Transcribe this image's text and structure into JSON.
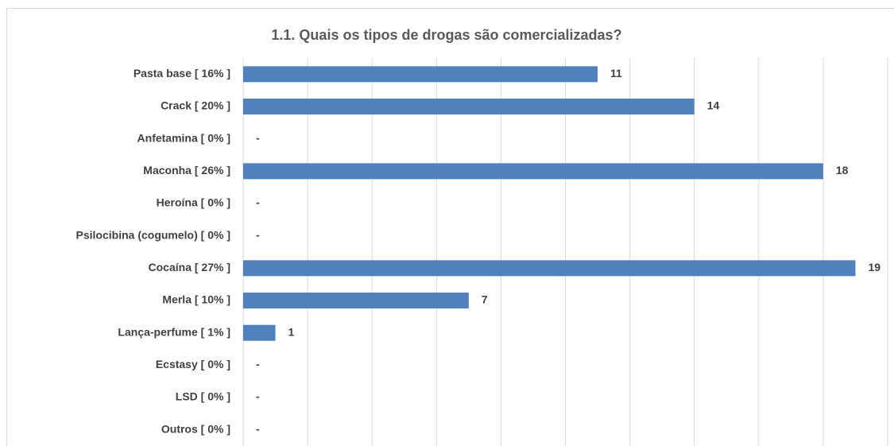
{
  "chart_data": {
    "type": "barh",
    "title": "1.1. Quais os tipos de drogas são comercializadas?",
    "categories": [
      "Pasta base [ 16% ]",
      "Crack [ 20% ]",
      "Anfetamina [ 0% ]",
      "Maconha [ 26% ]",
      "Heroína [ 0% ]",
      "Psilocibina (cogumelo) [ 0% ]",
      "Cocaína [ 27% ]",
      "Merla [ 10% ]",
      "Lança-perfume [ 1% ]",
      "Ecstasy [ 0% ]",
      "LSD [ 0% ]",
      "Outros [ 0% ]"
    ],
    "values": [
      11,
      14,
      0,
      18,
      0,
      0,
      19,
      7,
      1,
      0,
      0,
      0
    ],
    "value_labels": [
      "11",
      "14",
      "-",
      "18",
      "-",
      "-",
      "19",
      "7",
      "1",
      "-",
      "-",
      "-"
    ],
    "color": "#4f81bd",
    "xlim": [
      0,
      20
    ],
    "xticks": [
      0,
      2,
      4,
      6,
      8,
      10,
      12,
      14,
      16,
      18,
      20
    ],
    "xtick_labels": false,
    "grid": true
  }
}
